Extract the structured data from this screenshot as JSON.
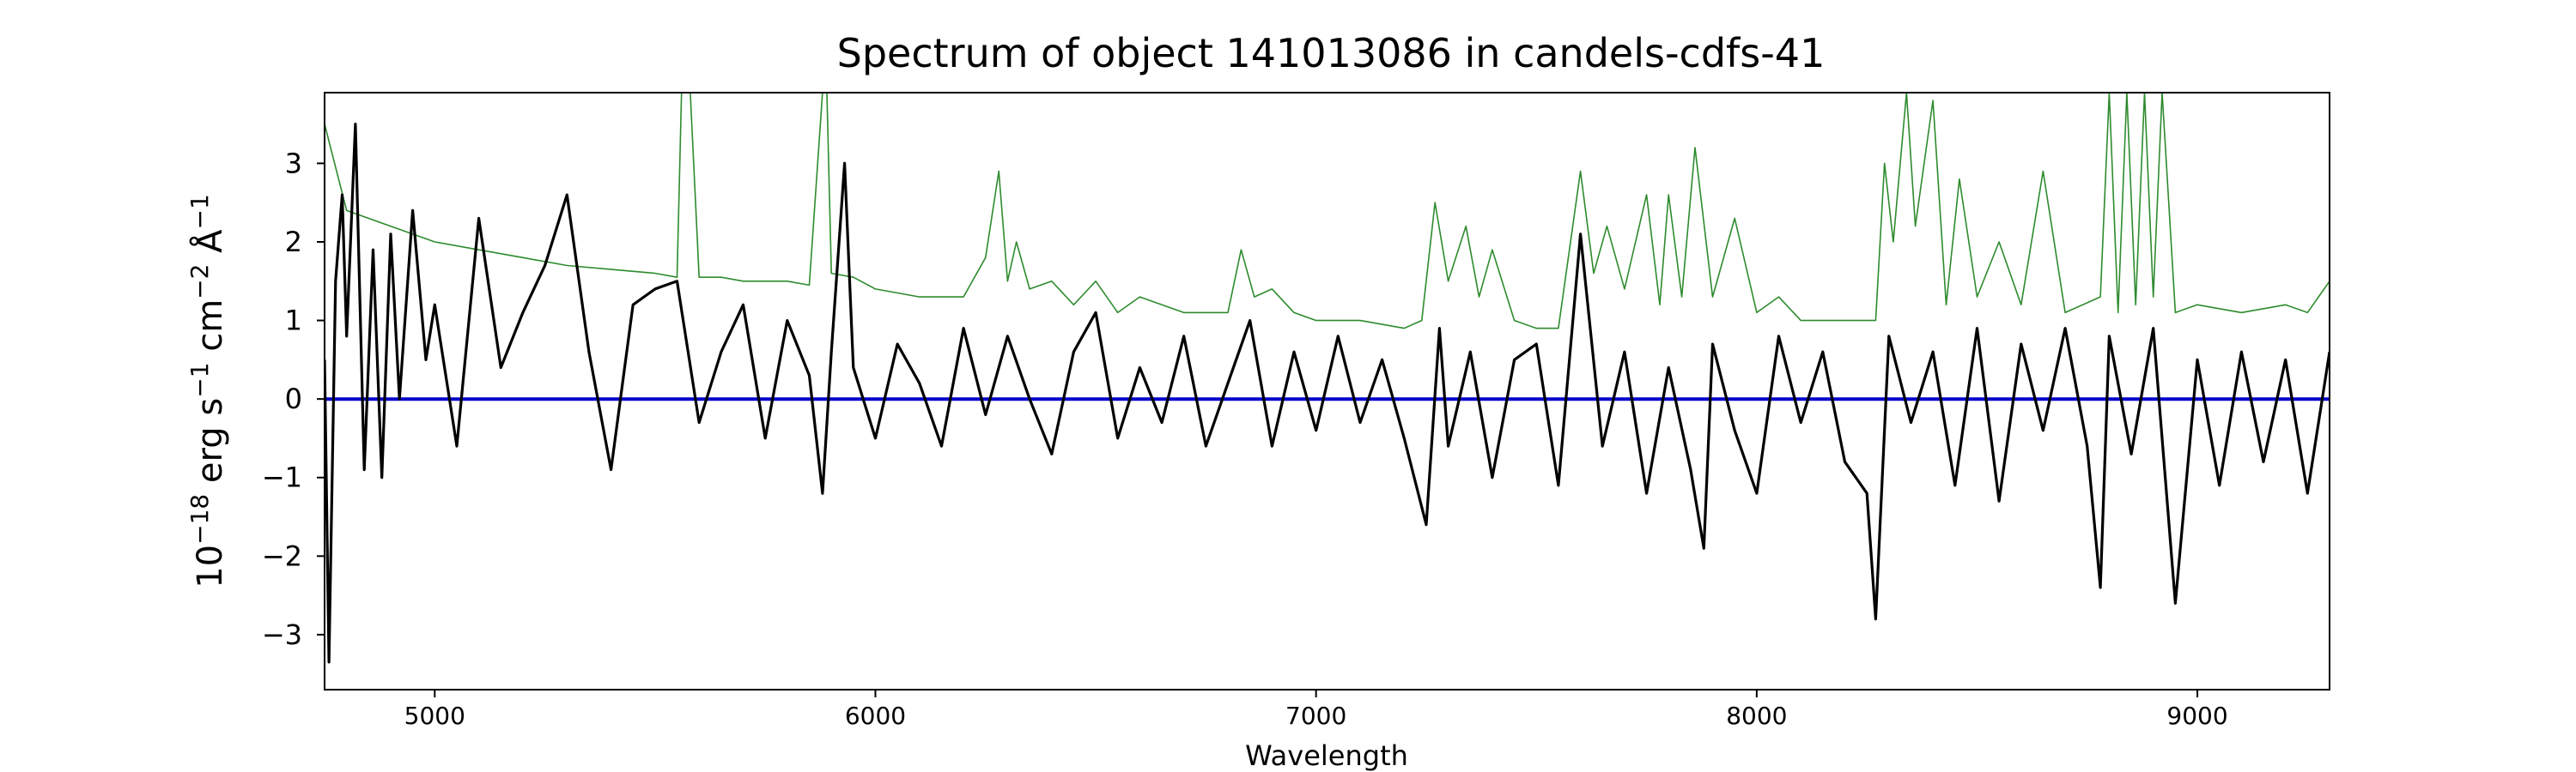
{
  "chart_data": {
    "type": "line",
    "title": "Spectrum of object 141013086 in candels-cdfs-41",
    "xlabel": "Wavelength",
    "ylabel": "10",
    "ylabel_parts": [
      "10",
      "−18",
      " erg s",
      "−1",
      " cm",
      "−2",
      " Å",
      "−1"
    ],
    "xlim": [
      4750,
      9300
    ],
    "ylim": [
      -3.7,
      3.9
    ],
    "xticks": [
      5000,
      6000,
      7000,
      8000,
      9000
    ],
    "xtick_labels": [
      "5000",
      "6000",
      "7000",
      "8000",
      "9000"
    ],
    "yticks": [
      -3,
      -2,
      -1,
      0,
      1,
      2,
      3
    ],
    "ytick_labels": [
      "−3",
      "−2",
      "−1",
      "0",
      "1",
      "2",
      "3"
    ],
    "grid": false,
    "colors": {
      "flux": "#000000",
      "sky": "#2e8b2e",
      "zero": "#0000cc"
    },
    "series": [
      {
        "key": "sky",
        "x": [
          4750,
          4800,
          4900,
          5000,
          5100,
          5200,
          5300,
          5400,
          5500,
          5550,
          5560,
          5580,
          5600,
          5650,
          5700,
          5800,
          5850,
          5880,
          5890,
          5900,
          5950,
          6000,
          6100,
          6200,
          6250,
          6280,
          6300,
          6320,
          6350,
          6400,
          6450,
          6500,
          6550,
          6600,
          6700,
          6800,
          6830,
          6860,
          6900,
          6950,
          7000,
          7100,
          7200,
          7240,
          7270,
          7300,
          7340,
          7370,
          7400,
          7450,
          7500,
          7550,
          7600,
          7630,
          7660,
          7700,
          7750,
          7780,
          7800,
          7830,
          7860,
          7900,
          7950,
          8000,
          8050,
          8100,
          8200,
          8270,
          8290,
          8310,
          8340,
          8360,
          8400,
          8430,
          8460,
          8500,
          8550,
          8600,
          8650,
          8700,
          8780,
          8800,
          8820,
          8840,
          8860,
          8880,
          8900,
          8920,
          8950,
          9000,
          9100,
          9200,
          9250,
          9300
        ],
        "y": [
          3.5,
          2.4,
          2.2,
          2.0,
          1.9,
          1.8,
          1.7,
          1.65,
          1.6,
          1.55,
          3.9,
          3.9,
          1.55,
          1.55,
          1.5,
          1.5,
          1.45,
          3.9,
          3.9,
          1.6,
          1.55,
          1.4,
          1.3,
          1.3,
          1.8,
          2.9,
          1.5,
          2.0,
          1.4,
          1.5,
          1.2,
          1.5,
          1.1,
          1.3,
          1.1,
          1.1,
          1.9,
          1.3,
          1.4,
          1.1,
          1.0,
          1.0,
          0.9,
          1.0,
          2.5,
          1.5,
          2.2,
          1.3,
          1.9,
          1.0,
          0.9,
          0.9,
          2.9,
          1.6,
          2.2,
          1.4,
          2.6,
          1.2,
          2.6,
          1.3,
          3.2,
          1.3,
          2.3,
          1.1,
          1.3,
          1.0,
          1.0,
          1.0,
          3.0,
          2.0,
          3.9,
          2.2,
          3.8,
          1.2,
          2.8,
          1.3,
          2.0,
          1.2,
          2.9,
          1.1,
          1.3,
          3.9,
          1.1,
          3.9,
          1.2,
          3.9,
          1.3,
          3.9,
          1.1,
          1.2,
          1.1,
          1.2,
          1.1,
          1.5
        ]
      },
      {
        "key": "flux",
        "x": [
          4750,
          4760,
          4775,
          4790,
          4800,
          4820,
          4840,
          4860,
          4880,
          4900,
          4920,
          4950,
          4980,
          5000,
          5050,
          5100,
          5150,
          5200,
          5250,
          5300,
          5350,
          5400,
          5450,
          5500,
          5550,
          5600,
          5650,
          5700,
          5750,
          5800,
          5850,
          5880,
          5900,
          5930,
          5950,
          6000,
          6050,
          6100,
          6150,
          6200,
          6250,
          6300,
          6350,
          6400,
          6450,
          6500,
          6550,
          6600,
          6650,
          6700,
          6750,
          6800,
          6850,
          6900,
          6950,
          7000,
          7050,
          7100,
          7150,
          7200,
          7250,
          7280,
          7300,
          7350,
          7400,
          7450,
          7500,
          7550,
          7600,
          7650,
          7700,
          7750,
          7800,
          7850,
          7880,
          7900,
          7950,
          8000,
          8050,
          8100,
          8150,
          8200,
          8250,
          8270,
          8300,
          8350,
          8400,
          8450,
          8500,
          8550,
          8600,
          8650,
          8700,
          8750,
          8780,
          8800,
          8850,
          8900,
          8950,
          9000,
          9050,
          9100,
          9150,
          9200,
          9250,
          9300
        ],
        "y": [
          0.5,
          -3.35,
          1.5,
          2.6,
          0.8,
          3.5,
          -0.9,
          1.9,
          -1.0,
          2.1,
          0.0,
          2.4,
          0.5,
          1.2,
          -0.6,
          2.3,
          0.4,
          1.1,
          1.7,
          2.6,
          0.6,
          -0.9,
          1.2,
          1.4,
          1.5,
          -0.3,
          0.6,
          1.2,
          -0.5,
          1.0,
          0.3,
          -1.2,
          0.6,
          3.0,
          0.4,
          -0.5,
          0.7,
          0.2,
          -0.6,
          0.9,
          -0.2,
          0.8,
          0.0,
          -0.7,
          0.6,
          1.1,
          -0.5,
          0.4,
          -0.3,
          0.8,
          -0.6,
          0.2,
          1.0,
          -0.6,
          0.6,
          -0.4,
          0.8,
          -0.3,
          0.5,
          -0.5,
          -1.6,
          0.9,
          -0.6,
          0.6,
          -1.0,
          0.5,
          0.7,
          -1.1,
          2.1,
          -0.6,
          0.6,
          -1.2,
          0.4,
          -0.9,
          -1.9,
          0.7,
          -0.4,
          -1.2,
          0.8,
          -0.3,
          0.6,
          -0.8,
          -1.2,
          -2.8,
          0.8,
          -0.3,
          0.6,
          -1.1,
          0.9,
          -1.3,
          0.7,
          -0.4,
          0.9,
          -0.6,
          -2.4,
          0.8,
          -0.7,
          0.9,
          -2.6,
          0.5,
          -1.1,
          0.6,
          -0.8,
          0.5,
          -1.2,
          0.6
        ]
      },
      {
        "key": "zero",
        "x": [
          4750,
          9300
        ],
        "y": [
          0,
          0
        ]
      }
    ]
  }
}
